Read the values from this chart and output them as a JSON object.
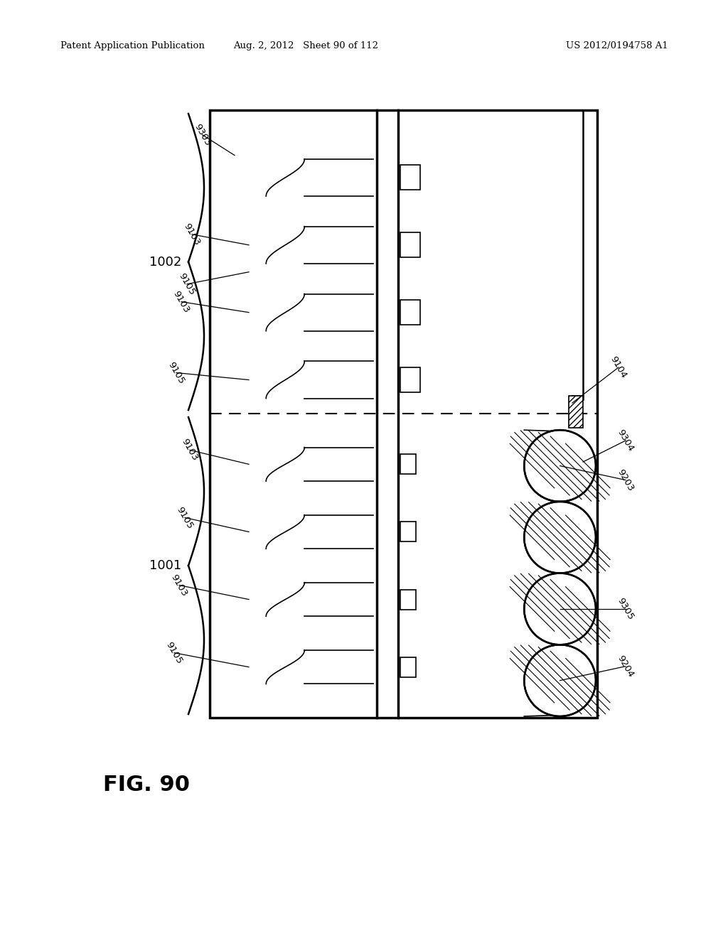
{
  "bg_color": "#ffffff",
  "header_left": "Patent Application Publication",
  "header_mid": "Aug. 2, 2012   Sheet 90 of 112",
  "header_right": "US 2012/0194758 A1",
  "figure_label": "FIG. 90"
}
